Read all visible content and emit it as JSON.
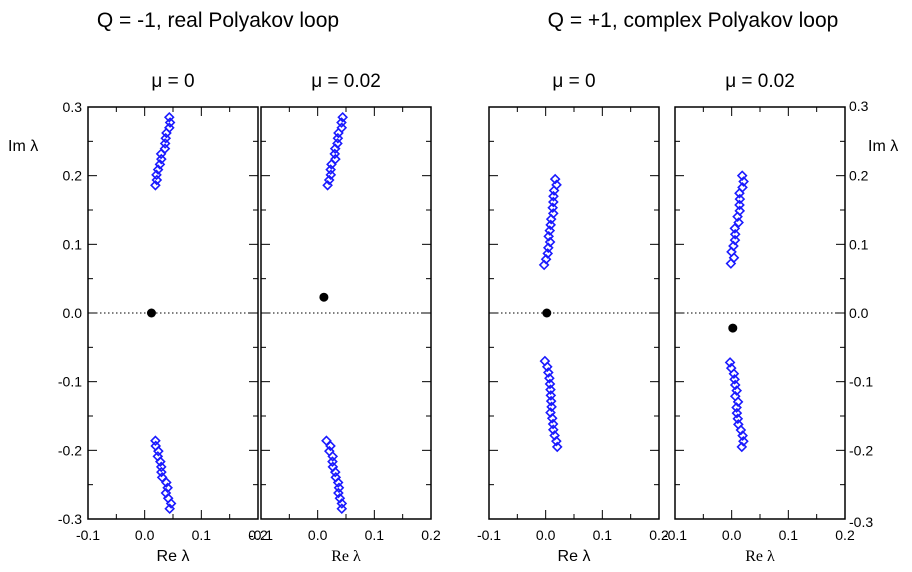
{
  "groups": [
    {
      "title": "Q = -1, real Polyakov loop"
    },
    {
      "title": "Q = +1, complex Polyakov loop"
    }
  ],
  "chart_data": [
    {
      "type": "scatter",
      "group": "Q = -1, real Polyakov loop",
      "title": "μ = 0",
      "xlabel": "Re λ",
      "ylabel": "Im λ",
      "xlim": [
        -0.1,
        0.2
      ],
      "ylim": [
        -0.3,
        0.3
      ],
      "x_ticks": [
        "-0.1",
        "0.0",
        "0.1",
        "0.2"
      ],
      "y_ticks": [
        "0.3",
        "0.2",
        "0.1",
        "0.0",
        "-0.1",
        "-0.2",
        "-0.3"
      ],
      "grid": false,
      "reference_line_y": 0,
      "series": [
        {
          "marker": "diamond",
          "color": "#1a1aff",
          "y_pos": [
            0.186,
            0.285
          ],
          "x_pos": [
            0.019,
            0.046
          ],
          "n": 14
        },
        {
          "marker": "diamond",
          "color": "#1a1aff",
          "y_neg": [
            -0.186,
            -0.285
          ],
          "x_neg": [
            0.019,
            0.046
          ],
          "n": 14
        },
        {
          "marker": "filled-circle",
          "color": "#000000",
          "points": [
            [
              0.012,
              0.0
            ]
          ]
        }
      ]
    },
    {
      "type": "scatter",
      "group": "Q = -1, real Polyakov loop",
      "title": "μ = 0.02",
      "xlabel": "Re λ",
      "ylabel": "",
      "xlim": [
        -0.1,
        0.2
      ],
      "ylim": [
        -0.3,
        0.3
      ],
      "x_ticks": [
        "-0.1",
        "0.0",
        "0.1",
        "0.2"
      ],
      "y_ticks": [],
      "grid": false,
      "reference_line_y": 0,
      "series": [
        {
          "marker": "diamond",
          "color": "#1a1aff",
          "y_pos": [
            0.186,
            0.285
          ],
          "x_pos": [
            0.018,
            0.045
          ],
          "n": 14
        },
        {
          "marker": "diamond",
          "color": "#1a1aff",
          "y_neg": [
            -0.186,
            -0.285
          ],
          "x_neg": [
            0.018,
            0.045
          ],
          "n": 14
        },
        {
          "marker": "filled-circle",
          "color": "#000000",
          "points": [
            [
              0.011,
              0.023
            ]
          ]
        }
      ]
    },
    {
      "type": "scatter",
      "group": "Q = +1, complex Polyakov loop",
      "title": "μ = 0",
      "xlabel": "Re λ",
      "ylabel": "",
      "xlim": [
        -0.1,
        0.2
      ],
      "ylim": [
        -0.3,
        0.3
      ],
      "x_ticks": [
        "-0.1",
        "0.0",
        "0.1",
        "0.2"
      ],
      "y_ticks": [],
      "grid": false,
      "reference_line_y": 0,
      "series": [
        {
          "marker": "diamond",
          "color": "#1a1aff",
          "y_pos": [
            0.07,
            0.195
          ],
          "x_pos": [
            0.0,
            0.019
          ],
          "n": 16
        },
        {
          "marker": "diamond",
          "color": "#1a1aff",
          "y_neg": [
            -0.07,
            -0.195
          ],
          "x_neg": [
            0.0,
            0.019
          ],
          "n": 16
        },
        {
          "marker": "filled-circle",
          "color": "#000000",
          "points": [
            [
              0.002,
              0.0
            ]
          ]
        }
      ]
    },
    {
      "type": "scatter",
      "group": "Q = +1, complex Polyakov loop",
      "title": "μ = 0.02",
      "xlabel": "Re λ",
      "ylabel": "Im λ",
      "xlim": [
        -0.1,
        0.2
      ],
      "ylim": [
        -0.3,
        0.3
      ],
      "x_ticks": [
        "-0.1",
        "0.0",
        "0.1",
        "0.2"
      ],
      "y_ticks": [
        "0.3",
        "0.2",
        "0.1",
        "0.0",
        "-0.1",
        "-0.2",
        "-0.3"
      ],
      "grid": false,
      "reference_line_y": 0,
      "series": [
        {
          "marker": "diamond",
          "color": "#1a1aff",
          "y_pos": [
            0.072,
            0.2
          ],
          "x_pos": [
            0.0,
            0.02
          ],
          "n": 16
        },
        {
          "marker": "diamond",
          "color": "#1a1aff",
          "y_neg": [
            -0.072,
            -0.195
          ],
          "x_neg": [
            0.0,
            0.02
          ],
          "n": 16
        },
        {
          "marker": "filled-circle",
          "color": "#000000",
          "points": [
            [
              0.002,
              -0.022
            ]
          ]
        }
      ]
    }
  ]
}
